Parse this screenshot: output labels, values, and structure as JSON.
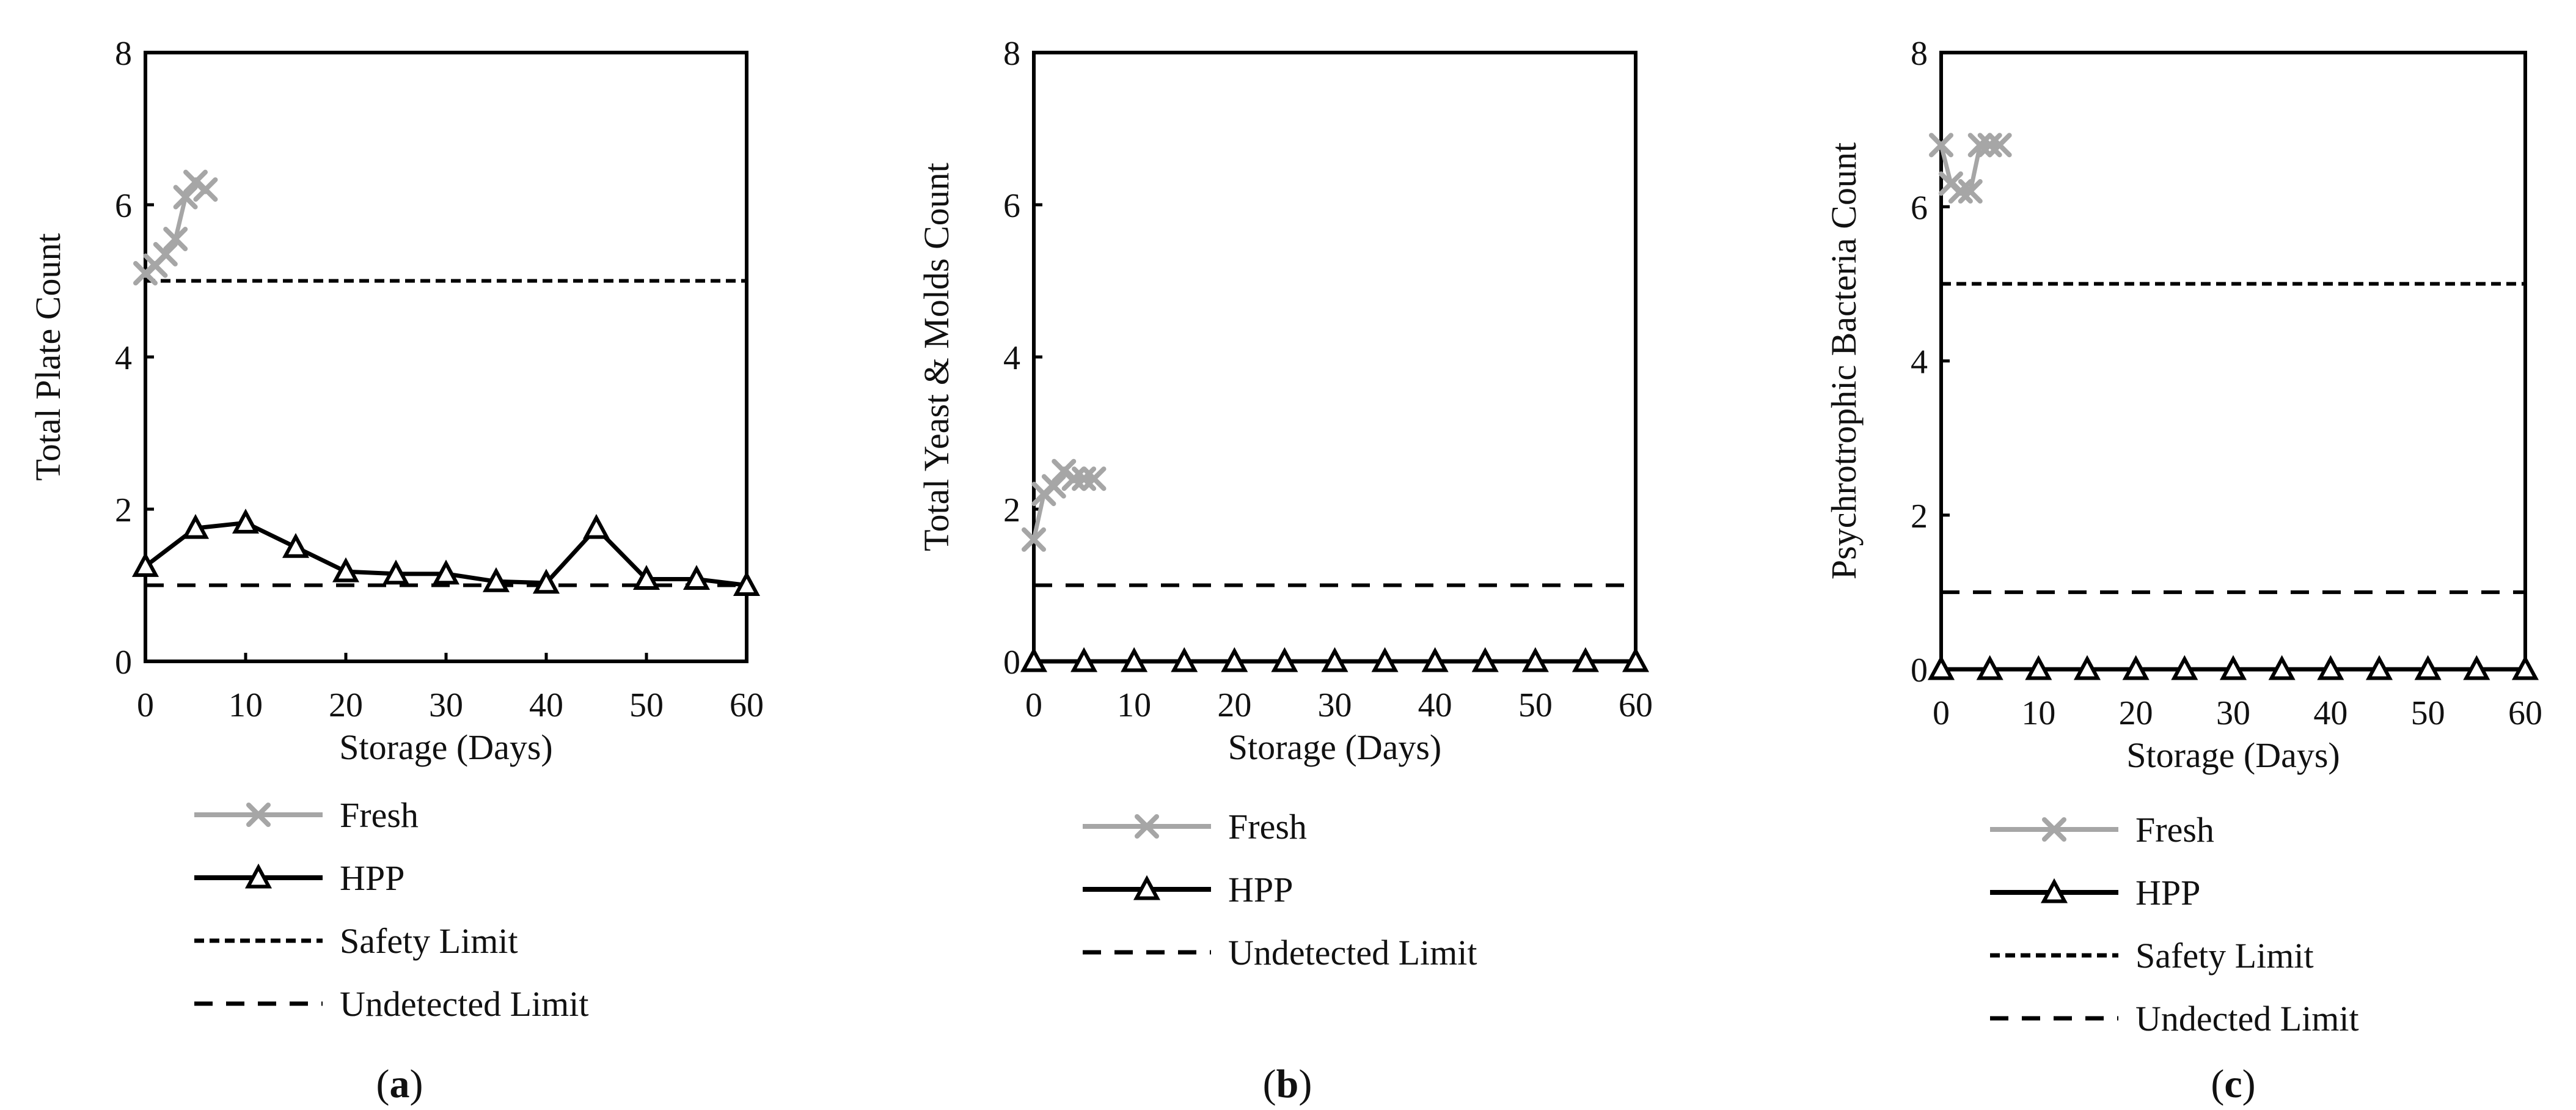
{
  "panels": [
    {
      "caption": "(a)",
      "caption_letter": "a",
      "chart_data": {
        "type": "line",
        "xlabel": "Storage (Days)",
        "ylabel": "Total Plate Count",
        "xlim": [
          0,
          60
        ],
        "ylim": [
          0,
          8
        ],
        "xticks": [
          0,
          10,
          20,
          30,
          40,
          50,
          60
        ],
        "yticks": [
          0,
          2,
          4,
          6,
          8
        ],
        "grid": false,
        "legend_position": "below",
        "series": [
          {
            "name": "Fresh",
            "color": "#a6a6a6",
            "marker": "x",
            "line": "solid",
            "x": [
              0,
              1,
              2,
              3,
              4,
              5,
              6
            ],
            "y": [
              5.1,
              5.2,
              5.35,
              5.55,
              6.1,
              6.3,
              6.2
            ]
          },
          {
            "name": "HPP",
            "color": "#000000",
            "marker": "triangle",
            "line": "solid",
            "x": [
              0,
              5,
              10,
              15,
              20,
              25,
              30,
              35,
              40,
              45,
              50,
              55,
              60
            ],
            "y": [
              1.25,
              1.75,
              1.82,
              1.5,
              1.18,
              1.15,
              1.15,
              1.05,
              1.03,
              1.75,
              1.08,
              1.08,
              1.0
            ]
          },
          {
            "name": "Safety Limit",
            "color": "#000000",
            "marker": "none",
            "line": "dotted",
            "x": [
              0,
              60
            ],
            "y": [
              5,
              5
            ]
          },
          {
            "name": "Undetected Limit",
            "color": "#000000",
            "marker": "none",
            "line": "dashed",
            "x": [
              0,
              60
            ],
            "y": [
              1,
              1
            ]
          }
        ]
      }
    },
    {
      "caption": "(b)",
      "caption_letter": "b",
      "chart_data": {
        "type": "line",
        "xlabel": "Storage (Days)",
        "ylabel": "Total Yeast & Molds Count",
        "xlim": [
          0,
          60
        ],
        "ylim": [
          0,
          8
        ],
        "xticks": [
          0,
          10,
          20,
          30,
          40,
          50,
          60
        ],
        "yticks": [
          0,
          2,
          4,
          6,
          8
        ],
        "grid": false,
        "legend_position": "below",
        "series": [
          {
            "name": "Fresh",
            "color": "#a6a6a6",
            "marker": "x",
            "line": "solid",
            "x": [
              0,
              1,
              2,
              3,
              4,
              5,
              6
            ],
            "y": [
              1.6,
              2.2,
              2.3,
              2.5,
              2.4,
              2.4,
              2.4
            ]
          },
          {
            "name": "HPP",
            "color": "#000000",
            "marker": "triangle",
            "line": "solid",
            "x": [
              0,
              5,
              10,
              15,
              20,
              25,
              30,
              35,
              40,
              45,
              50,
              55,
              60
            ],
            "y": [
              0,
              0,
              0,
              0,
              0,
              0,
              0,
              0,
              0,
              0,
              0,
              0,
              0
            ]
          },
          {
            "name": "Undetected Limit",
            "color": "#000000",
            "marker": "none",
            "line": "dashed",
            "x": [
              0,
              60
            ],
            "y": [
              1,
              1
            ]
          }
        ]
      }
    },
    {
      "caption": "(c)",
      "caption_letter": "c",
      "chart_data": {
        "type": "line",
        "xlabel": "Storage (Days)",
        "ylabel": "Psychrotrophic Bacteria Count",
        "xlim": [
          0,
          60
        ],
        "ylim": [
          0,
          8
        ],
        "xticks": [
          0,
          10,
          20,
          30,
          40,
          50,
          60
        ],
        "yticks": [
          0,
          2,
          4,
          6,
          8
        ],
        "grid": false,
        "legend_position": "below",
        "series": [
          {
            "name": "Fresh",
            "color": "#a6a6a6",
            "marker": "x",
            "line": "solid",
            "x": [
              0,
              1,
              2,
              3,
              4,
              5,
              6
            ],
            "y": [
              6.8,
              6.3,
              6.2,
              6.2,
              6.8,
              6.8,
              6.8
            ]
          },
          {
            "name": "HPP",
            "color": "#000000",
            "marker": "triangle",
            "line": "solid",
            "x": [
              0,
              5,
              10,
              15,
              20,
              25,
              30,
              35,
              40,
              45,
              50,
              55,
              60
            ],
            "y": [
              0,
              0,
              0,
              0,
              0,
              0,
              0,
              0,
              0,
              0,
              0,
              0,
              0
            ]
          },
          {
            "name": "Safety Limit",
            "color": "#000000",
            "marker": "none",
            "line": "dotted",
            "x": [
              0,
              60
            ],
            "y": [
              5,
              5
            ]
          },
          {
            "name": "Undected Limit",
            "color": "#000000",
            "marker": "none",
            "line": "dashed",
            "x": [
              0,
              60
            ],
            "y": [
              1,
              1
            ]
          }
        ]
      }
    }
  ]
}
